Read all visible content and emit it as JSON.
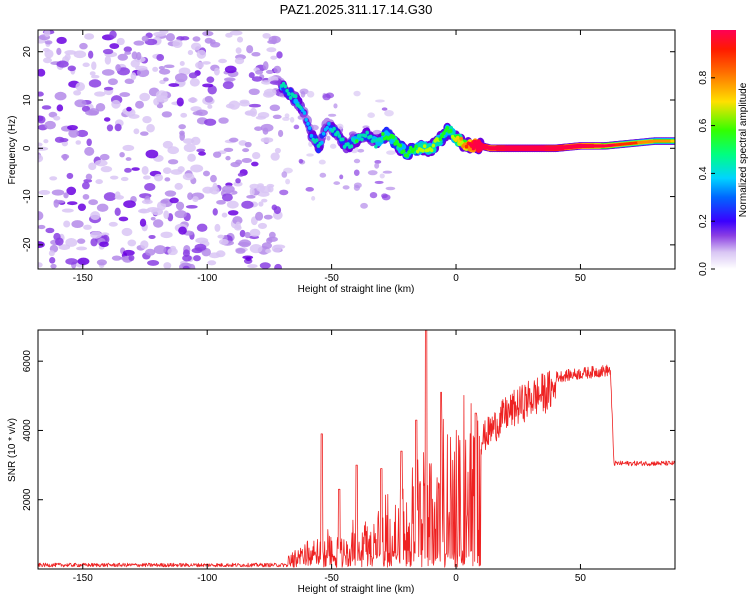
{
  "figure_title": "PAZ1.2025.311.17.14.G30",
  "colors": {
    "snr_line": "#ee2222",
    "axis": "#000000",
    "colormap": [
      "#ffffff",
      "#d9c6f4",
      "#b48ae9",
      "#8a3ee3",
      "#6a00e0",
      "#1e2bff",
      "#00b7ff",
      "#00e0b0",
      "#19ff19",
      "#b4ff00",
      "#ffd000",
      "#ff8a00",
      "#ff2b00",
      "#ff0044"
    ]
  },
  "chart_data": [
    {
      "type": "heatmap",
      "title": "PAZ1.2025.311.17.14.G30",
      "xlabel": "Height of straight line (km)",
      "ylabel": "Frequency (Hz)",
      "xlim": [
        -168,
        88
      ],
      "ylim": [
        -25,
        24.5
      ],
      "xticks": [
        -150,
        -100,
        -50,
        0,
        50
      ],
      "xtick_labels": [
        "-150",
        "-100",
        "-50",
        "0",
        "50"
      ],
      "yticks": [
        -20,
        -10,
        0,
        10,
        20
      ],
      "ytick_labels": [
        "-20",
        "-10",
        "0",
        "10",
        "20"
      ],
      "colorbar": {
        "label": "Normalized spectral amplitude",
        "range": [
          0,
          1
        ],
        "ticks": [
          0.0,
          0.2,
          0.4,
          0.6,
          0.8
        ],
        "tick_labels": [
          "0.0",
          "0.2",
          "0.4",
          "0.6",
          "0.8"
        ]
      },
      "noise_region_x": [
        -168,
        -70
      ],
      "signal_ridge": [
        {
          "x": -70,
          "y": 13,
          "v": 0.25
        },
        {
          "x": -66,
          "y": 11,
          "v": 0.2
        },
        {
          "x": -64,
          "y": 10,
          "v": 0.28
        },
        {
          "x": -61,
          "y": 7,
          "v": 0.15
        },
        {
          "x": -58,
          "y": 3,
          "v": 0.2
        },
        {
          "x": -55,
          "y": 0,
          "v": 0.22
        },
        {
          "x": -52,
          "y": 5,
          "v": 0.15
        },
        {
          "x": -48,
          "y": 3,
          "v": 0.25
        },
        {
          "x": -44,
          "y": 0,
          "v": 0.2
        },
        {
          "x": -40,
          "y": 2,
          "v": 0.28
        },
        {
          "x": -36,
          "y": 3,
          "v": 0.22
        },
        {
          "x": -32,
          "y": 1,
          "v": 0.25
        },
        {
          "x": -28,
          "y": 3,
          "v": 0.3
        },
        {
          "x": -24,
          "y": 1,
          "v": 0.33
        },
        {
          "x": -20,
          "y": -1,
          "v": 0.3
        },
        {
          "x": -15,
          "y": 0,
          "v": 0.36
        },
        {
          "x": -10,
          "y": 0,
          "v": 0.4
        },
        {
          "x": -6,
          "y": 2,
          "v": 0.35
        },
        {
          "x": -3,
          "y": 4,
          "v": 0.3
        },
        {
          "x": 0,
          "y": 2,
          "v": 0.45
        },
        {
          "x": 3,
          "y": 1,
          "v": 0.55
        },
        {
          "x": 6,
          "y": 0.5,
          "v": 0.7
        },
        {
          "x": 10,
          "y": 0.5,
          "v": 0.95
        },
        {
          "x": 14,
          "y": 0,
          "v": 0.7
        },
        {
          "x": 20,
          "y": 0,
          "v": 0.85
        },
        {
          "x": 30,
          "y": 0,
          "v": 0.9
        },
        {
          "x": 40,
          "y": 0,
          "v": 0.8
        },
        {
          "x": 50,
          "y": 0.5,
          "v": 0.7
        },
        {
          "x": 60,
          "y": 0.5,
          "v": 0.5
        },
        {
          "x": 70,
          "y": 1,
          "v": 0.4
        },
        {
          "x": 80,
          "y": 1.5,
          "v": 0.35
        },
        {
          "x": 88,
          "y": 1.5,
          "v": 0.3
        }
      ]
    },
    {
      "type": "line",
      "xlabel": "Height of straight line (km)",
      "ylabel": "SNR (10 * v/v)",
      "xlim": [
        -168,
        88
      ],
      "ylim": [
        0,
        6900
      ],
      "xticks": [
        -150,
        -100,
        -50,
        0,
        50
      ],
      "xtick_labels": [
        "-150",
        "-100",
        "-50",
        "0",
        "50"
      ],
      "yticks": [
        2000,
        4000,
        6000
      ],
      "ytick_labels": [
        "2000",
        "4000",
        "6000"
      ],
      "series": [
        {
          "name": "SNR",
          "baseline_noise": 60,
          "envelope": [
            {
              "x": -168,
              "y": 100
            },
            {
              "x": -70,
              "y": 100
            },
            {
              "x": -65,
              "y": 200
            },
            {
              "x": -60,
              "y": 700
            },
            {
              "x": -50,
              "y": 800
            },
            {
              "x": -40,
              "y": 1000
            },
            {
              "x": -30,
              "y": 1400
            },
            {
              "x": -20,
              "y": 2000
            },
            {
              "x": -10,
              "y": 2600
            },
            {
              "x": 0,
              "y": 3200
            },
            {
              "x": 10,
              "y": 4000
            },
            {
              "x": 20,
              "y": 4800
            },
            {
              "x": 30,
              "y": 5300
            },
            {
              "x": 40,
              "y": 5600
            },
            {
              "x": 50,
              "y": 5700
            },
            {
              "x": 62,
              "y": 5800
            },
            {
              "x": 63.5,
              "y": 3050
            },
            {
              "x": 88,
              "y": 3050
            }
          ],
          "spikes": [
            {
              "x": -54,
              "y": 3900
            },
            {
              "x": -47,
              "y": 2300
            },
            {
              "x": -40,
              "y": 3000
            },
            {
              "x": -30,
              "y": 2900
            },
            {
              "x": -22,
              "y": 3400
            },
            {
              "x": -16,
              "y": 4300
            },
            {
              "x": -12,
              "y": 6900
            },
            {
              "x": -6,
              "y": 5100
            },
            {
              "x": 8,
              "y": 4500
            }
          ]
        }
      ]
    }
  ]
}
